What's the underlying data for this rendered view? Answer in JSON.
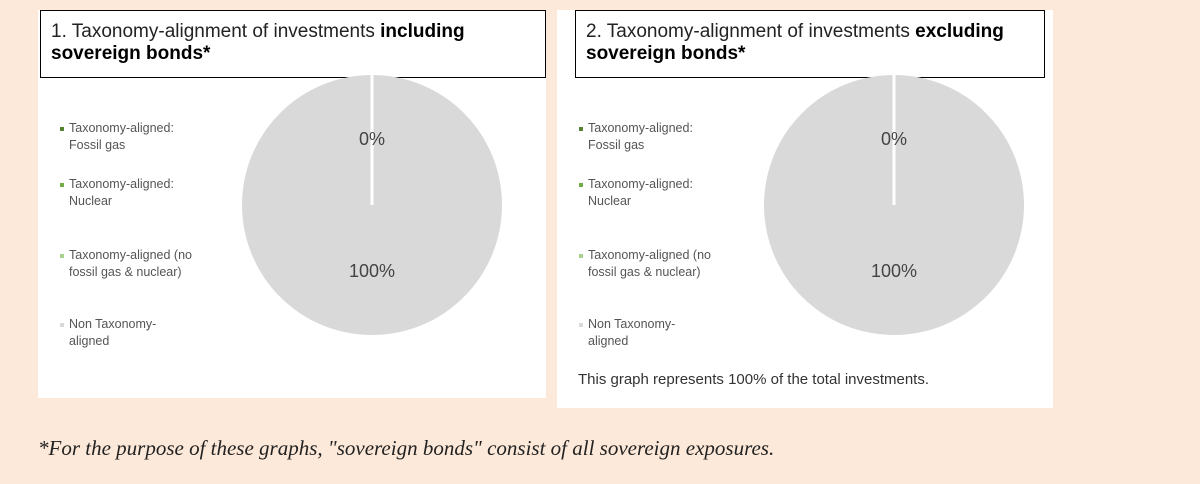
{
  "chart_data": [
    {
      "type": "pie",
      "title": "1. Taxonomy-alignment of investments",
      "title_emphasis": "including sovereign bonds*",
      "categories": [
        "Taxonomy-aligned:\nFossil gas",
        "Taxonomy-aligned:\nNuclear",
        "Taxonomy-aligned (no\nfossil gas & nuclear)",
        "Non Taxonomy-\naligned"
      ],
      "values": [
        0,
        0,
        0,
        100
      ],
      "value_labels": [
        "0%",
        null,
        null,
        "100%"
      ],
      "colors": [
        "#548235",
        "#70ad47",
        "#a9d18e",
        "#d9d9d9"
      ]
    },
    {
      "type": "pie",
      "title": "2. Taxonomy-alignment of investments",
      "title_emphasis": "excluding sovereign bonds*",
      "categories": [
        "Taxonomy-aligned:\nFossil gas",
        "Taxonomy-aligned:\nNuclear",
        "Taxonomy-aligned (no\nfossil gas & nuclear)",
        "Non Taxonomy-\naligned"
      ],
      "values": [
        0,
        0,
        0,
        100
      ],
      "value_labels": [
        "0%",
        null,
        null,
        "100%"
      ],
      "colors": [
        "#548235",
        "#70ad47",
        "#a9d18e",
        "#d9d9d9"
      ],
      "note": "This graph represents 100% of the total investments."
    }
  ],
  "footnote": "*For the purpose of these graphs, \"sovereign bonds\" consist of all sovereign exposures."
}
